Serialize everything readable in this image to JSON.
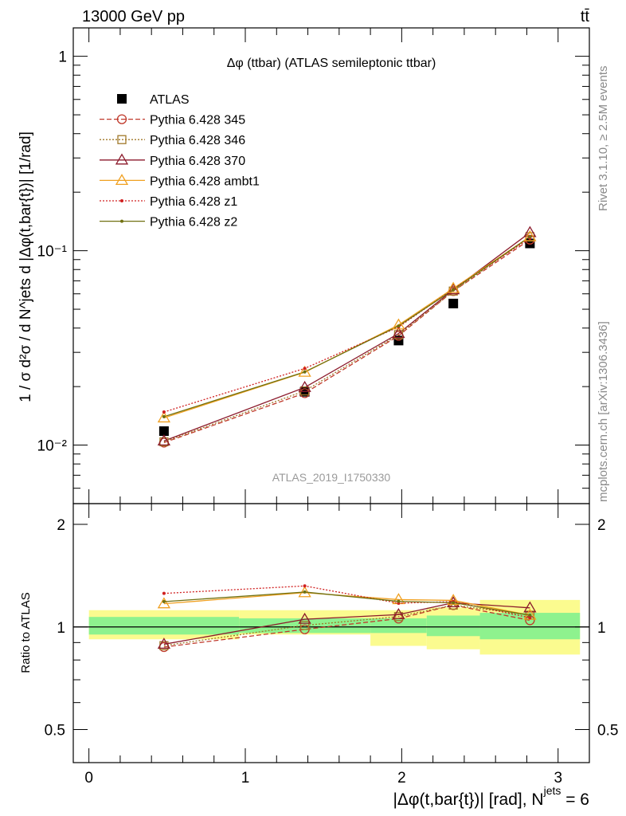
{
  "header": {
    "left": "13000 GeV pp",
    "right": "tt̄"
  },
  "side_labels": {
    "rivet": "Rivet 3.1.10, ≥ 2.5M events",
    "mcplots": "mcplots.cern.ch [arXiv:1306.3436]"
  },
  "chart_data": {
    "type": "line",
    "title": "Δφ (ttbar) (ATLAS semileptonic ttbar)",
    "watermark": "ATLAS_2019_I1750330",
    "xlabel": "|Δφ(t,bar{t})| [rad], N",
    "xlabel_superscript": "jets",
    "xlabel_suffix": " = 6",
    "ylabel": "1 / σ d²σ / d N^jets d |Δφ(t,bar{t})| [1/rad]",
    "ratio_ylabel": "Ratio to ATLAS",
    "xlim": [
      -0.1,
      3.2
    ],
    "ylim": [
      0.005,
      1.4
    ],
    "ylog": true,
    "ratio_ylim": [
      0.4,
      2.3
    ],
    "x_ticks": [
      "0",
      "1",
      "2",
      "3"
    ],
    "y_ticks": [
      "10⁻²",
      "10⁻¹",
      "1"
    ],
    "ratio_ticks": [
      "0.5",
      "1",
      "2"
    ],
    "legend_position": "top-left",
    "x": [
      0.48,
      1.38,
      1.98,
      2.33,
      2.82
    ],
    "bins": [
      [
        0,
        0.96
      ],
      [
        0.96,
        1.8
      ],
      [
        1.8,
        2.16
      ],
      [
        2.16,
        2.5
      ],
      [
        2.5,
        3.14
      ]
    ],
    "band_inner": [
      [
        0.95,
        1.07
      ],
      [
        0.96,
        1.06
      ],
      [
        0.96,
        1.06
      ],
      [
        0.94,
        1.08
      ],
      [
        0.92,
        1.1
      ]
    ],
    "band_outer": [
      [
        0.92,
        1.12
      ],
      [
        0.95,
        1.12
      ],
      [
        0.88,
        1.12
      ],
      [
        0.86,
        1.14
      ],
      [
        0.83,
        1.2
      ]
    ],
    "series": [
      {
        "name": "ATLAS",
        "color": "#000000",
        "marker": "square",
        "values": [
          0.0118,
          0.0188,
          0.0345,
          0.0535,
          0.109
        ]
      },
      {
        "name": "Pythia 6.428 345",
        "color": "#c0392b",
        "marker": "circle",
        "dash": "6,3",
        "values": [
          0.0103,
          0.0185,
          0.0365,
          0.062,
          0.114
        ]
      },
      {
        "name": "Pythia 6.428 346",
        "color": "#a07828",
        "marker": "square-open",
        "dash": "2,2",
        "values": [
          0.0104,
          0.019,
          0.037,
          0.062,
          0.118
        ]
      },
      {
        "name": "Pythia 6.428 370",
        "color": "#8b1a2b",
        "marker": "triangle",
        "values": [
          0.0105,
          0.0198,
          0.0375,
          0.063,
          0.124
        ]
      },
      {
        "name": "Pythia 6.428 ambt1",
        "color": "#f0a020",
        "marker": "triangle",
        "values": [
          0.0138,
          0.0237,
          0.0415,
          0.064,
          0.118
        ]
      },
      {
        "name": "Pythia 6.428 z1",
        "color": "#d02020",
        "marker": "dot",
        "dash": "2,2",
        "values": [
          0.0148,
          0.0248,
          0.0405,
          0.0635,
          0.116
        ]
      },
      {
        "name": "Pythia 6.428 z2",
        "color": "#707010",
        "marker": "dot",
        "values": [
          0.014,
          0.0238,
          0.041,
          0.063,
          0.118
        ]
      }
    ]
  }
}
